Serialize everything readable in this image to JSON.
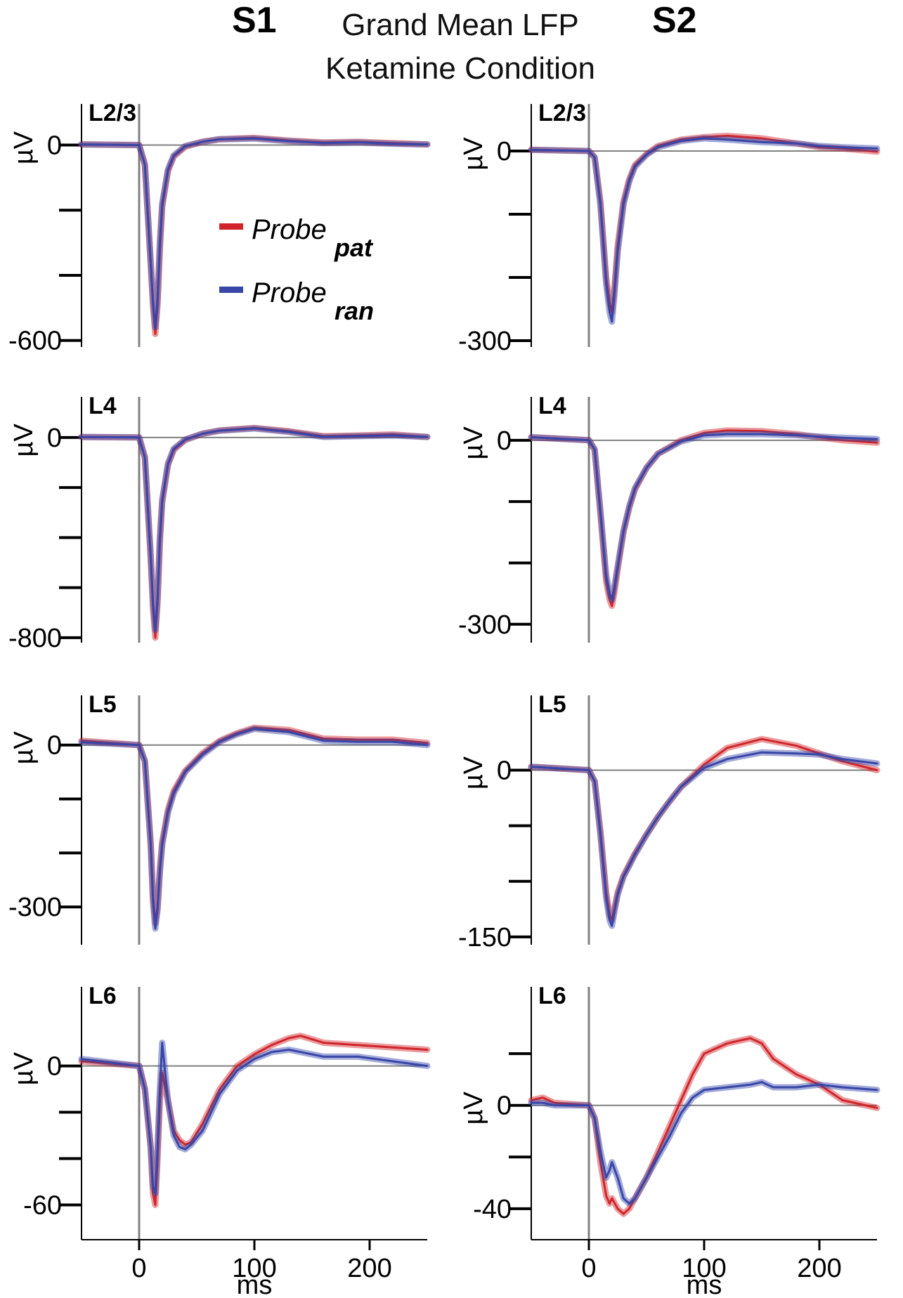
{
  "title": {
    "line1": "Grand Mean LFP",
    "line2": "Ketamine Condition",
    "left_column": "S1",
    "right_column": "S2"
  },
  "legend": {
    "items": [
      {
        "main": "Probe",
        "sub": "pat",
        "color": "#d0262b"
      },
      {
        "main": "Probe",
        "sub": "ran",
        "color": "#3846a8"
      }
    ]
  },
  "colors": {
    "pat": "#d0262b",
    "ran": "#3846a8",
    "zero_line": "#808080",
    "axis": "#000000"
  },
  "chart_data": [
    {
      "type": "line",
      "panel": "S1 L2/3",
      "label": "L2/3",
      "ylabel": "µV",
      "xlim": [
        -50,
        250
      ],
      "ylim": [
        -620,
        40
      ],
      "yticks": [
        0,
        -600
      ],
      "yminor": [
        -200,
        -400
      ],
      "series": [
        {
          "name": "pat",
          "x": [
            -50,
            0,
            5,
            10,
            12,
            14,
            16,
            18,
            20,
            25,
            30,
            40,
            55,
            70,
            100,
            130,
            160,
            190,
            220,
            250
          ],
          "y": [
            2,
            0,
            -60,
            -360,
            -490,
            -580,
            -490,
            -320,
            -190,
            -80,
            -35,
            -5,
            10,
            18,
            22,
            14,
            8,
            10,
            6,
            2
          ]
        },
        {
          "name": "ran",
          "x": [
            -50,
            0,
            5,
            10,
            12,
            14,
            16,
            18,
            20,
            25,
            30,
            40,
            55,
            70,
            100,
            130,
            160,
            190,
            220,
            250
          ],
          "y": [
            2,
            0,
            -60,
            -360,
            -480,
            -560,
            -470,
            -300,
            -180,
            -75,
            -32,
            -3,
            10,
            18,
            20,
            12,
            6,
            8,
            4,
            2
          ]
        }
      ]
    },
    {
      "type": "line",
      "panel": "S1 L4",
      "label": "L4",
      "ylabel": "µV",
      "xlim": [
        -50,
        250
      ],
      "ylim": [
        -820,
        50
      ],
      "yticks": [
        0,
        -800
      ],
      "yminor": [
        -200,
        -400,
        -600
      ],
      "series": [
        {
          "name": "pat",
          "x": [
            -50,
            0,
            5,
            10,
            12,
            14,
            16,
            18,
            20,
            25,
            30,
            40,
            55,
            70,
            100,
            130,
            160,
            190,
            220,
            250
          ],
          "y": [
            2,
            0,
            -80,
            -480,
            -680,
            -800,
            -660,
            -420,
            -260,
            -110,
            -50,
            -10,
            15,
            28,
            38,
            25,
            5,
            8,
            12,
            2
          ]
        },
        {
          "name": "ran",
          "x": [
            -50,
            0,
            5,
            10,
            12,
            14,
            16,
            18,
            20,
            25,
            30,
            40,
            55,
            70,
            100,
            130,
            160,
            190,
            220,
            250
          ],
          "y": [
            2,
            0,
            -80,
            -470,
            -660,
            -770,
            -640,
            -400,
            -250,
            -105,
            -45,
            -8,
            15,
            27,
            36,
            22,
            2,
            5,
            8,
            2
          ]
        }
      ]
    },
    {
      "type": "line",
      "panel": "S1 L5",
      "label": "L5",
      "ylabel": "µV",
      "xlim": [
        -50,
        250
      ],
      "ylim": [
        -370,
        40
      ],
      "yticks": [
        0,
        -300
      ],
      "yminor": [
        -100,
        -200
      ],
      "series": [
        {
          "name": "pat",
          "x": [
            -50,
            0,
            5,
            10,
            12,
            14,
            16,
            18,
            20,
            25,
            30,
            40,
            55,
            70,
            85,
            100,
            130,
            160,
            190,
            220,
            250
          ],
          "y": [
            8,
            0,
            -30,
            -180,
            -280,
            -330,
            -300,
            -230,
            -180,
            -120,
            -85,
            -48,
            -15,
            8,
            22,
            32,
            28,
            12,
            10,
            10,
            4
          ]
        },
        {
          "name": "ran",
          "x": [
            -50,
            0,
            5,
            10,
            12,
            14,
            16,
            18,
            20,
            25,
            30,
            40,
            55,
            70,
            85,
            100,
            130,
            160,
            190,
            220,
            250
          ],
          "y": [
            5,
            0,
            -30,
            -185,
            -290,
            -340,
            -305,
            -235,
            -185,
            -125,
            -90,
            -50,
            -18,
            6,
            20,
            30,
            24,
            8,
            6,
            6,
            0
          ]
        }
      ]
    },
    {
      "type": "line",
      "panel": "S1 L6",
      "label": "L6",
      "ylabel": "µV",
      "xlim": [
        -50,
        250
      ],
      "ylim": [
        -75,
        22
      ],
      "yticks": [
        0,
        -60
      ],
      "yminor": [
        -20,
        -40
      ],
      "series": [
        {
          "name": "pat",
          "x": [
            -50,
            0,
            5,
            10,
            12,
            14,
            16,
            18,
            20,
            25,
            30,
            35,
            40,
            45,
            55,
            70,
            85,
            100,
            115,
            130,
            140,
            160,
            190,
            220,
            250
          ],
          "y": [
            2,
            0,
            -10,
            -35,
            -55,
            -60,
            -40,
            -15,
            -3,
            -15,
            -28,
            -32,
            -34,
            -33,
            -25,
            -10,
            0,
            5,
            9,
            12,
            13,
            10,
            9,
            8,
            7
          ]
        },
        {
          "name": "ran",
          "x": [
            -50,
            0,
            5,
            10,
            12,
            14,
            16,
            18,
            20,
            25,
            30,
            35,
            40,
            45,
            55,
            70,
            85,
            100,
            115,
            130,
            140,
            160,
            190,
            220,
            250
          ],
          "y": [
            3,
            0,
            -10,
            -35,
            -52,
            -55,
            -35,
            -10,
            10,
            -15,
            -30,
            -35,
            -36,
            -34,
            -28,
            -12,
            -2,
            3,
            6,
            7,
            6,
            4,
            4,
            2,
            0
          ]
        }
      ]
    },
    {
      "type": "line",
      "panel": "S2 L2/3",
      "label": "L2/3",
      "ylabel": "µV",
      "xlim": [
        -50,
        250
      ],
      "ylim": [
        -310,
        30
      ],
      "yticks": [
        0,
        -300
      ],
      "yminor": [
        -100,
        -200
      ],
      "series": [
        {
          "name": "pat",
          "x": [
            -50,
            0,
            5,
            10,
            15,
            18,
            20,
            22,
            25,
            30,
            35,
            40,
            50,
            60,
            80,
            100,
            120,
            150,
            180,
            200,
            220,
            250
          ],
          "y": [
            2,
            0,
            -10,
            -80,
            -200,
            -240,
            -255,
            -220,
            -150,
            -80,
            -45,
            -22,
            -5,
            8,
            18,
            22,
            24,
            20,
            12,
            6,
            4,
            -1
          ]
        },
        {
          "name": "ran",
          "x": [
            -50,
            0,
            5,
            10,
            15,
            18,
            20,
            22,
            25,
            30,
            35,
            40,
            50,
            60,
            80,
            100,
            120,
            150,
            180,
            200,
            220,
            250
          ],
          "y": [
            2,
            0,
            -10,
            -85,
            -210,
            -255,
            -270,
            -230,
            -160,
            -85,
            -48,
            -25,
            -6,
            6,
            16,
            20,
            18,
            14,
            12,
            8,
            6,
            4
          ]
        }
      ]
    },
    {
      "type": "line",
      "panel": "S2 L4",
      "label": "L4",
      "ylabel": "µV",
      "xlim": [
        -50,
        250
      ],
      "ylim": [
        -330,
        25
      ],
      "yticks": [
        0,
        -300
      ],
      "yminor": [
        -100,
        -200
      ],
      "series": [
        {
          "name": "pat",
          "x": [
            -50,
            0,
            5,
            10,
            15,
            18,
            20,
            22,
            25,
            30,
            35,
            40,
            50,
            60,
            80,
            100,
            120,
            150,
            180,
            200,
            220,
            250
          ],
          "y": [
            5,
            0,
            -15,
            -120,
            -230,
            -260,
            -270,
            -250,
            -210,
            -150,
            -110,
            -80,
            -45,
            -22,
            0,
            12,
            16,
            15,
            10,
            5,
            0,
            -4
          ]
        },
        {
          "name": "ran",
          "x": [
            -50,
            0,
            5,
            10,
            15,
            18,
            20,
            22,
            25,
            30,
            35,
            40,
            50,
            60,
            80,
            100,
            120,
            150,
            180,
            200,
            220,
            250
          ],
          "y": [
            5,
            0,
            -15,
            -115,
            -220,
            -250,
            -260,
            -240,
            -205,
            -148,
            -108,
            -78,
            -45,
            -22,
            -2,
            8,
            10,
            10,
            8,
            6,
            4,
            2
          ]
        }
      ]
    },
    {
      "type": "line",
      "panel": "S2 L5",
      "label": "L5",
      "ylabel": "µV",
      "xlim": [
        -50,
        250
      ],
      "ylim": [
        -157,
        42
      ],
      "yticks": [
        0,
        -150
      ],
      "yminor": [
        -50,
        -100
      ],
      "series": [
        {
          "name": "pat",
          "x": [
            -50,
            0,
            5,
            10,
            15,
            18,
            20,
            22,
            25,
            30,
            35,
            40,
            50,
            60,
            70,
            80,
            100,
            120,
            150,
            180,
            200,
            220,
            250
          ],
          "y": [
            3,
            0,
            -10,
            -55,
            -110,
            -130,
            -135,
            -125,
            -110,
            -95,
            -85,
            -75,
            -58,
            -42,
            -28,
            -15,
            5,
            20,
            28,
            22,
            15,
            8,
            0
          ]
        },
        {
          "name": "ran",
          "x": [
            -50,
            0,
            5,
            10,
            15,
            18,
            20,
            22,
            25,
            30,
            35,
            40,
            50,
            60,
            70,
            80,
            100,
            120,
            150,
            180,
            200,
            220,
            250
          ],
          "y": [
            3,
            0,
            -10,
            -58,
            -115,
            -135,
            -140,
            -128,
            -112,
            -96,
            -86,
            -76,
            -58,
            -42,
            -28,
            -15,
            2,
            10,
            16,
            15,
            14,
            10,
            6
          ]
        }
      ]
    },
    {
      "type": "line",
      "panel": "S2 L6",
      "label": "L6",
      "ylabel": "µV",
      "xlim": [
        -50,
        250
      ],
      "ylim": [
        -52,
        35
      ],
      "yticks": [
        0,
        -40
      ],
      "yminor": [
        -20,
        20
      ],
      "series": [
        {
          "name": "pat",
          "x": [
            -50,
            -40,
            -30,
            0,
            5,
            10,
            15,
            18,
            20,
            25,
            30,
            35,
            40,
            50,
            60,
            70,
            80,
            90,
            100,
            120,
            140,
            150,
            160,
            180,
            200,
            220,
            250
          ],
          "y": [
            2,
            3,
            1,
            0,
            -5,
            -22,
            -35,
            -38,
            -36,
            -40,
            -42,
            -40,
            -36,
            -28,
            -18,
            -8,
            2,
            12,
            20,
            24,
            26,
            24,
            18,
            12,
            8,
            2,
            -1
          ]
        },
        {
          "name": "ran",
          "x": [
            -50,
            -40,
            -30,
            0,
            5,
            10,
            15,
            18,
            20,
            25,
            30,
            35,
            40,
            50,
            60,
            70,
            80,
            90,
            100,
            120,
            140,
            150,
            160,
            180,
            200,
            220,
            250
          ],
          "y": [
            1,
            1,
            0,
            0,
            -5,
            -18,
            -28,
            -25,
            -22,
            -28,
            -36,
            -38,
            -36,
            -28,
            -20,
            -12,
            -3,
            3,
            6,
            7,
            8,
            9,
            7,
            7,
            8,
            7,
            6
          ]
        }
      ]
    }
  ],
  "x_axis": {
    "ticks": [
      "0",
      "100",
      "200"
    ],
    "label": "ms"
  }
}
